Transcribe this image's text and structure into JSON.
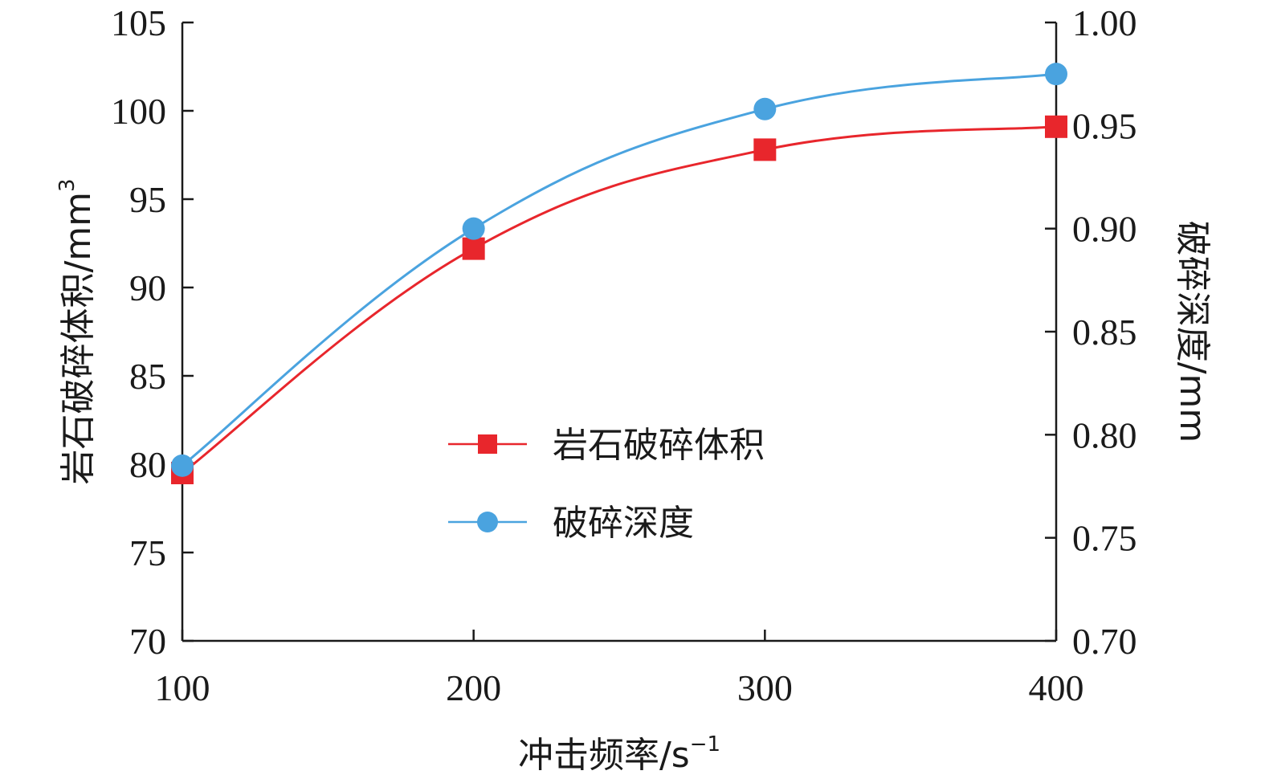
{
  "colors": {
    "series1": "#e8262c",
    "series2": "#4aa3df",
    "axis": "#1a1a1a"
  },
  "legend": {
    "placement": "center"
  },
  "chart_data": {
    "type": "line",
    "xlabel": "冲击频率/s",
    "xlabel_sup": "−1",
    "ylabel_left": "岩石破碎体积/mm",
    "ylabel_left_sup": "3",
    "ylabel_right": "破碎深度/mm",
    "x": [
      100,
      200,
      300,
      400
    ],
    "x_ticks": [
      "100",
      "200",
      "300",
      "400"
    ],
    "y_left_ticks": [
      "70",
      "75",
      "80",
      "85",
      "90",
      "95",
      "100",
      "105"
    ],
    "y_right_ticks": [
      "0.70",
      "0.75",
      "0.80",
      "0.85",
      "0.90",
      "0.95",
      "1.00"
    ],
    "xlim": [
      100,
      400
    ],
    "ylim_left": [
      70,
      105
    ],
    "ylim_right": [
      0.7,
      1.0
    ],
    "grid": false,
    "series": [
      {
        "name": "岩石破碎体积",
        "axis": "left",
        "marker": "square",
        "values": [
          79.5,
          92.2,
          97.8,
          99.1
        ]
      },
      {
        "name": "破碎深度",
        "axis": "right",
        "marker": "circle",
        "values": [
          0.785,
          0.9,
          0.958,
          0.975
        ]
      }
    ]
  }
}
